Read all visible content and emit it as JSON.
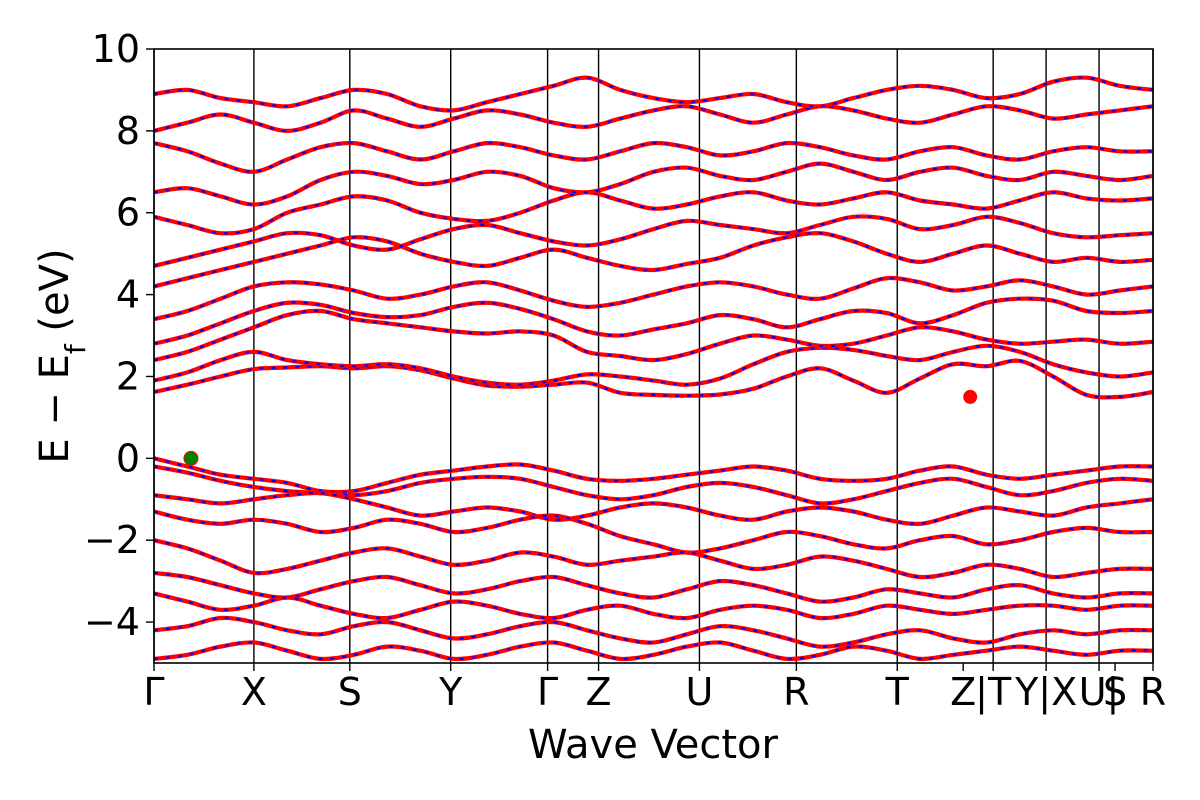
{
  "chart_data": {
    "type": "line",
    "title": "",
    "xlabel": "Wave Vector",
    "ylabel": {
      "main": "E − E",
      "sub": "f",
      "unit": " (eV)"
    },
    "ylim": [
      -5,
      10
    ],
    "xlim": [
      0,
      10
    ],
    "yticks": [
      "−4",
      "−2",
      "0",
      "2",
      "4",
      "6",
      "8",
      "10"
    ],
    "ytick_values": [
      -4,
      -2,
      0,
      2,
      4,
      6,
      8,
      10
    ],
    "kpath": [
      {
        "label": "Γ",
        "x": 0.0
      },
      {
        "label": "X",
        "x": 1.0
      },
      {
        "label": "S",
        "x": 1.96
      },
      {
        "label": "Y",
        "x": 2.97
      },
      {
        "label": "Γ",
        "x": 3.94
      },
      {
        "label": "Z",
        "x": 4.45
      },
      {
        "label": "U",
        "x": 5.46
      },
      {
        "label": "R",
        "x": 6.43
      },
      {
        "label": "T",
        "x": 7.44
      },
      {
        "label": "Z",
        "x": 8.1
      },
      {
        "label": "|T",
        "x": 8.4
      },
      {
        "label": "Y|X",
        "x": 8.93
      },
      {
        "label": "U|",
        "x": 9.46
      },
      {
        "label": "S",
        "x": 9.62
      },
      {
        "label": "R",
        "x": 10.0
      }
    ],
    "vlines": [
      0,
      1.0,
      1.96,
      2.97,
      3.94,
      4.45,
      5.46,
      6.43,
      7.44,
      8.4,
      8.93,
      9.46,
      10.0
    ],
    "valence_band_max": {
      "x": 0.37,
      "y": 0.0,
      "color": "#008000"
    },
    "conduction_band_min": {
      "x": 8.17,
      "y": 1.5,
      "color": "#ff0000"
    },
    "colors": {
      "band_line": "#ff0000",
      "band_dash": "#0000ff",
      "vline": "#000000"
    },
    "series": [
      {
        "values": [
          1.62,
          1.8,
          2.0,
          2.18,
          2.22,
          2.25,
          2.2,
          2.25,
          2.15,
          1.95,
          1.78,
          1.75,
          1.8,
          1.85,
          1.6,
          1.55,
          1.53,
          1.56,
          1.7,
          2.0,
          2.2,
          1.9,
          1.6,
          1.95,
          2.3,
          2.25,
          2.38,
          2.0,
          1.55,
          1.5,
          1.62
        ]
      },
      {
        "values": [
          1.9,
          2.1,
          2.4,
          2.6,
          2.4,
          2.3,
          2.25,
          2.3,
          2.2,
          2.0,
          1.85,
          1.8,
          1.9,
          2.05,
          2.0,
          1.9,
          1.8,
          1.95,
          2.3,
          2.6,
          2.7,
          2.65,
          2.5,
          2.4,
          2.6,
          2.75,
          2.6,
          2.3,
          2.1,
          2.0,
          2.1
        ]
      },
      {
        "values": [
          2.4,
          2.6,
          2.9,
          3.2,
          3.5,
          3.6,
          3.4,
          3.3,
          3.2,
          3.1,
          3.05,
          3.1,
          3.0,
          2.6,
          2.5,
          2.4,
          2.55,
          2.8,
          3.0,
          2.9,
          2.75,
          2.8,
          3.0,
          3.2,
          3.1,
          2.9,
          2.8,
          2.85,
          2.9,
          2.8,
          2.85
        ]
      },
      {
        "values": [
          2.8,
          3.0,
          3.3,
          3.6,
          3.8,
          3.75,
          3.55,
          3.45,
          3.5,
          3.7,
          3.8,
          3.65,
          3.4,
          3.1,
          3.0,
          3.15,
          3.3,
          3.5,
          3.4,
          3.2,
          3.4,
          3.6,
          3.55,
          3.3,
          3.5,
          3.8,
          3.9,
          3.85,
          3.6,
          3.55,
          3.6
        ]
      },
      {
        "values": [
          3.4,
          3.6,
          3.9,
          4.2,
          4.3,
          4.25,
          4.1,
          3.9,
          4.0,
          4.2,
          4.3,
          4.1,
          3.85,
          3.7,
          3.8,
          4.0,
          4.2,
          4.3,
          4.2,
          4.0,
          3.9,
          4.15,
          4.4,
          4.3,
          4.1,
          4.2,
          4.35,
          4.2,
          4.0,
          4.1,
          4.2
        ]
      },
      {
        "values": [
          4.2,
          4.4,
          4.6,
          4.8,
          5.0,
          5.2,
          5.4,
          5.3,
          5.0,
          4.8,
          4.7,
          4.9,
          5.1,
          4.9,
          4.7,
          4.6,
          4.75,
          4.9,
          5.2,
          5.4,
          5.5,
          5.3,
          5.0,
          4.8,
          5.0,
          5.2,
          5.0,
          4.8,
          4.9,
          4.8,
          4.85
        ]
      },
      {
        "values": [
          4.7,
          4.9,
          5.1,
          5.3,
          5.5,
          5.45,
          5.2,
          5.1,
          5.35,
          5.6,
          5.7,
          5.5,
          5.3,
          5.2,
          5.35,
          5.6,
          5.8,
          5.7,
          5.6,
          5.5,
          5.7,
          5.9,
          5.85,
          5.6,
          5.7,
          5.9,
          5.75,
          5.5,
          5.4,
          5.45,
          5.5
        ]
      },
      {
        "values": [
          5.9,
          5.7,
          5.5,
          5.6,
          6.0,
          6.2,
          6.4,
          6.3,
          6.0,
          5.85,
          5.8,
          6.0,
          6.3,
          6.5,
          6.3,
          6.1,
          6.2,
          6.4,
          6.5,
          6.3,
          6.2,
          6.35,
          6.5,
          6.3,
          6.2,
          6.1,
          6.3,
          6.5,
          6.35,
          6.3,
          6.35
        ]
      },
      {
        "values": [
          6.5,
          6.6,
          6.4,
          6.2,
          6.4,
          6.8,
          7.0,
          6.9,
          6.7,
          6.8,
          7.0,
          6.9,
          6.6,
          6.5,
          6.7,
          7.0,
          7.1,
          6.9,
          6.8,
          7.0,
          7.2,
          7.0,
          6.8,
          7.0,
          7.1,
          6.9,
          6.8,
          7.0,
          6.9,
          6.8,
          6.9
        ]
      },
      {
        "values": [
          7.7,
          7.5,
          7.2,
          7.0,
          7.3,
          7.6,
          7.7,
          7.5,
          7.3,
          7.5,
          7.7,
          7.6,
          7.4,
          7.3,
          7.5,
          7.7,
          7.6,
          7.4,
          7.5,
          7.7,
          7.6,
          7.4,
          7.3,
          7.5,
          7.6,
          7.4,
          7.3,
          7.5,
          7.6,
          7.5,
          7.5
        ]
      },
      {
        "values": [
          8.0,
          8.2,
          8.4,
          8.2,
          8.0,
          8.2,
          8.5,
          8.3,
          8.1,
          8.3,
          8.5,
          8.4,
          8.2,
          8.1,
          8.3,
          8.5,
          8.6,
          8.4,
          8.2,
          8.4,
          8.6,
          8.5,
          8.3,
          8.2,
          8.4,
          8.6,
          8.5,
          8.3,
          8.4,
          8.5,
          8.6
        ]
      },
      {
        "values": [
          8.9,
          9.0,
          8.8,
          8.7,
          8.6,
          8.8,
          9.0,
          8.9,
          8.6,
          8.5,
          8.7,
          8.9,
          9.1,
          9.3,
          9.0,
          8.8,
          8.7,
          8.8,
          8.9,
          8.7,
          8.6,
          8.8,
          9.0,
          9.1,
          9.0,
          8.8,
          8.9,
          9.2,
          9.3,
          9.1,
          9.0
        ]
      },
      {
        "values": [
          0.0,
          -0.2,
          -0.4,
          -0.5,
          -0.6,
          -0.8,
          -0.8,
          -0.6,
          -0.4,
          -0.3,
          -0.2,
          -0.15,
          -0.3,
          -0.5,
          -0.55,
          -0.5,
          -0.4,
          -0.3,
          -0.2,
          -0.3,
          -0.5,
          -0.55,
          -0.5,
          -0.3,
          -0.2,
          -0.4,
          -0.5,
          -0.4,
          -0.3,
          -0.2,
          -0.2
        ]
      },
      {
        "values": [
          -0.2,
          -0.35,
          -0.55,
          -0.7,
          -0.8,
          -0.85,
          -0.9,
          -0.8,
          -0.6,
          -0.5,
          -0.45,
          -0.5,
          -0.7,
          -0.9,
          -1.0,
          -0.9,
          -0.7,
          -0.6,
          -0.7,
          -0.9,
          -1.1,
          -1.0,
          -0.8,
          -0.6,
          -0.5,
          -0.7,
          -0.9,
          -0.8,
          -0.6,
          -0.5,
          -0.55
        ]
      },
      {
        "values": [
          -0.9,
          -1.0,
          -1.1,
          -1.0,
          -0.9,
          -0.85,
          -1.0,
          -1.2,
          -1.4,
          -1.3,
          -1.2,
          -1.3,
          -1.5,
          -1.4,
          -1.2,
          -1.1,
          -1.2,
          -1.4,
          -1.5,
          -1.3,
          -1.2,
          -1.3,
          -1.5,
          -1.6,
          -1.4,
          -1.2,
          -1.3,
          -1.4,
          -1.2,
          -1.1,
          -1.0
        ]
      },
      {
        "values": [
          -1.3,
          -1.5,
          -1.6,
          -1.5,
          -1.6,
          -1.8,
          -1.7,
          -1.5,
          -1.6,
          -1.8,
          -1.7,
          -1.5,
          -1.4,
          -1.6,
          -1.9,
          -2.1,
          -2.3,
          -2.2,
          -2.0,
          -1.8,
          -1.9,
          -2.1,
          -2.2,
          -2.0,
          -1.9,
          -2.1,
          -2.0,
          -1.8,
          -1.7,
          -1.8,
          -1.8
        ]
      },
      {
        "values": [
          -2.0,
          -2.2,
          -2.5,
          -2.8,
          -2.7,
          -2.5,
          -2.3,
          -2.2,
          -2.4,
          -2.6,
          -2.5,
          -2.3,
          -2.4,
          -2.6,
          -2.5,
          -2.4,
          -2.3,
          -2.5,
          -2.7,
          -2.6,
          -2.4,
          -2.5,
          -2.7,
          -2.9,
          -2.8,
          -2.6,
          -2.7,
          -2.9,
          -2.8,
          -2.7,
          -2.7
        ]
      },
      {
        "values": [
          -2.8,
          -2.9,
          -3.1,
          -3.3,
          -3.4,
          -3.2,
          -3.0,
          -2.9,
          -3.1,
          -3.3,
          -3.2,
          -3.0,
          -2.9,
          -3.1,
          -3.3,
          -3.4,
          -3.2,
          -3.0,
          -3.1,
          -3.3,
          -3.5,
          -3.4,
          -3.2,
          -3.3,
          -3.4,
          -3.2,
          -3.1,
          -3.3,
          -3.4,
          -3.3,
          -3.3
        ]
      },
      {
        "values": [
          -3.3,
          -3.5,
          -3.7,
          -3.6,
          -3.4,
          -3.6,
          -3.8,
          -3.9,
          -3.7,
          -3.5,
          -3.6,
          -3.8,
          -3.9,
          -3.7,
          -3.6,
          -3.8,
          -3.9,
          -3.7,
          -3.6,
          -3.7,
          -3.9,
          -3.8,
          -3.6,
          -3.7,
          -3.8,
          -3.7,
          -3.6,
          -3.6,
          -3.7,
          -3.6,
          -3.6
        ]
      },
      {
        "values": [
          -4.2,
          -4.1,
          -3.9,
          -4.0,
          -4.2,
          -4.3,
          -4.1,
          -4.0,
          -4.2,
          -4.4,
          -4.3,
          -4.1,
          -4.0,
          -4.2,
          -4.4,
          -4.5,
          -4.3,
          -4.1,
          -4.2,
          -4.4,
          -4.6,
          -4.5,
          -4.3,
          -4.2,
          -4.4,
          -4.5,
          -4.3,
          -4.2,
          -4.3,
          -4.2,
          -4.2
        ]
      },
      {
        "values": [
          -4.9,
          -4.8,
          -4.6,
          -4.5,
          -4.7,
          -4.9,
          -4.8,
          -4.6,
          -4.7,
          -4.9,
          -4.8,
          -4.6,
          -4.5,
          -4.7,
          -4.9,
          -4.8,
          -4.6,
          -4.5,
          -4.7,
          -4.9,
          -4.8,
          -4.6,
          -4.7,
          -4.9,
          -4.8,
          -4.7,
          -4.6,
          -4.7,
          -4.8,
          -4.7,
          -4.7
        ]
      }
    ]
  }
}
